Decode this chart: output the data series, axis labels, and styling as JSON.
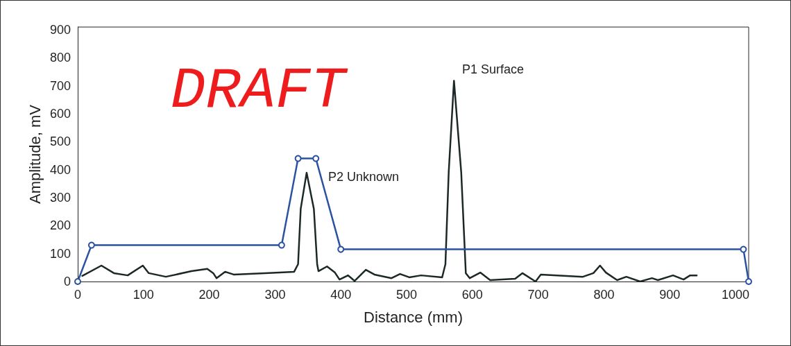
{
  "chart_data": {
    "type": "line",
    "xlabel": "Distance (mm)",
    "ylabel": "Amplitude, mV",
    "xlim": [
      0,
      1020
    ],
    "xticks": [
      0,
      100,
      200,
      300,
      400,
      500,
      600,
      700,
      800,
      900,
      1000
    ],
    "ylim": [
      0,
      910
    ],
    "yticks": [
      0,
      100,
      200,
      300,
      400,
      500,
      600,
      700,
      800,
      900
    ],
    "grid": false,
    "line_style": "solid",
    "series": [
      {
        "color": "#1c2828",
        "marker": "none",
        "x": [
          7,
          36,
          55,
          76,
          99,
          108,
          134,
          173,
          197,
          206,
          211,
          224,
          237,
          285,
          329,
          335,
          339,
          348,
          359,
          364,
          366,
          379,
          391,
          398,
          411,
          421,
          438,
          451,
          477,
          490,
          504,
          522,
          554,
          559,
          564,
          572,
          583,
          590,
          596,
          612,
          627,
          665,
          676,
          696,
          704,
          768,
          784,
          794,
          803,
          820,
          834,
          855,
          873,
          882,
          905,
          921,
          931,
          941
        ],
        "values": [
          20,
          57,
          30,
          22,
          57,
          30,
          17,
          37,
          45,
          30,
          12,
          35,
          25,
          30,
          35,
          62,
          260,
          389,
          260,
          62,
          37,
          54,
          32,
          7,
          22,
          2,
          42,
          25,
          12,
          27,
          15,
          22,
          15,
          62,
          391,
          718,
          391,
          30,
          12,
          32,
          5,
          10,
          30,
          0,
          25,
          17,
          30,
          57,
          32,
          5,
          17,
          0,
          12,
          5,
          22,
          7,
          22,
          22
        ]
      },
      {
        "color": "#2a52a0",
        "marker": "circle",
        "x": [
          0,
          21,
          310,
          335,
          362,
          400,
          1012,
          1020
        ],
        "values": [
          0,
          130,
          130,
          440,
          440,
          115,
          115,
          0
        ]
      }
    ],
    "annotations": [
      "DRAFT",
      "P1 Surface",
      "P2 Unknown"
    ]
  }
}
